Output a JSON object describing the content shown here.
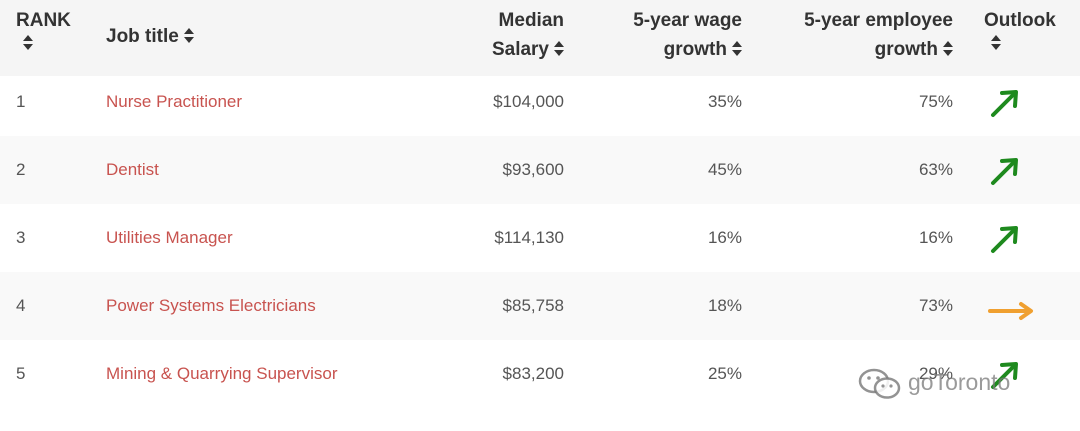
{
  "table": {
    "headers": {
      "rank": "RANK",
      "title": "Job title",
      "salary_line1": "Median",
      "salary_line2": "Salary",
      "wage_line1": "5-year wage",
      "wage_line2": "growth",
      "emp_line1": "5-year employee",
      "emp_line2": "growth",
      "outlook": "Outlook"
    },
    "rows": [
      {
        "rank": "1",
        "title": "Nurse Practitioner",
        "salary": "$104,000",
        "wage_growth": "35%",
        "employee_growth": "75%",
        "outlook": "up-right-arrow-icon"
      },
      {
        "rank": "2",
        "title": "Dentist",
        "salary": "$93,600",
        "wage_growth": "45%",
        "employee_growth": "63%",
        "outlook": "up-right-arrow-icon"
      },
      {
        "rank": "3",
        "title": "Utilities Manager",
        "salary": "$114,130",
        "wage_growth": "16%",
        "employee_growth": "16%",
        "outlook": "up-right-arrow-icon"
      },
      {
        "rank": "4",
        "title": "Power Systems Electricians",
        "salary": "$85,758",
        "wage_growth": "18%",
        "employee_growth": "73%",
        "outlook": "right-arrow-icon"
      },
      {
        "rank": "5",
        "title": "Mining & Quarrying Supervisor",
        "salary": "$83,200",
        "wage_growth": "25%",
        "employee_growth": "29%",
        "outlook": "up-right-arrow-icon"
      }
    ]
  },
  "colors": {
    "title_link": "#c8534f",
    "outlook_up": "#1e8a1e",
    "outlook_flat": "#f0a030",
    "alt_row": "#f9f9f9",
    "header_bg": "#f5f5f5"
  },
  "watermark": {
    "text": "goToronto",
    "icon": "wechat-icon"
  }
}
